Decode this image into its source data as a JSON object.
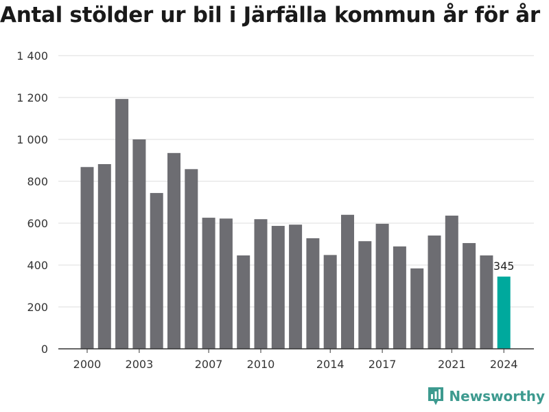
{
  "chart_data": {
    "type": "bar",
    "title": "Antal stölder ur bil i Järfälla kommun år för år",
    "xlabel": "",
    "ylabel": "",
    "categories": [
      "2000",
      "2001",
      "2002",
      "2003",
      "2004",
      "2005",
      "2006",
      "2007",
      "2008",
      "2009",
      "2010",
      "2011",
      "2012",
      "2013",
      "2014",
      "2015",
      "2016",
      "2017",
      "2018",
      "2019",
      "2020",
      "2021",
      "2022",
      "2023",
      "2024"
    ],
    "values": [
      868,
      882,
      1193,
      1000,
      744,
      935,
      858,
      626,
      622,
      446,
      619,
      587,
      593,
      528,
      448,
      640,
      514,
      597,
      489,
      384,
      541,
      636,
      505,
      446,
      345
    ],
    "x_tick_labels": [
      "2000",
      "2003",
      "2007",
      "2010",
      "2014",
      "2017",
      "2021",
      "2024"
    ],
    "y_ticks": [
      0,
      200,
      400,
      600,
      800,
      1000,
      1200,
      1400
    ],
    "y_tick_labels": [
      "0",
      "200",
      "400",
      "600",
      "800",
      "1 000",
      "1 200",
      "1 400"
    ],
    "ylim": [
      0,
      1400
    ],
    "grid": true,
    "annotation": {
      "category": "2024",
      "text": "345"
    },
    "colors": {
      "bar": "#6d6d72",
      "highlight": "#00a99d",
      "grid": "#dcdcdc",
      "axis": "#333333"
    }
  },
  "brand": {
    "name": "Newsworthy",
    "icon": "chart-bars-icon",
    "color": "#3d9a8f"
  }
}
